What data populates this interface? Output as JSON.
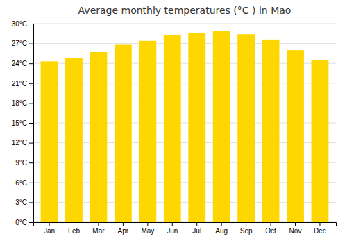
{
  "chart_data": {
    "type": "bar",
    "title": "Average monthly temperatures (°C ) in Mao",
    "categories": [
      "Jan",
      "Feb",
      "Mar",
      "Apr",
      "May",
      "Jun",
      "Jul",
      "Aug",
      "Sep",
      "Oct",
      "Nov",
      "Dec"
    ],
    "values": [
      24.3,
      24.8,
      25.7,
      26.8,
      27.4,
      28.3,
      28.6,
      28.9,
      28.4,
      27.6,
      26.0,
      24.5
    ],
    "color": "#FFD700",
    "ylim": [
      0,
      30
    ],
    "yticks": [
      {
        "value": 0,
        "label": "0°C"
      },
      {
        "value": 3,
        "label": "3°C"
      },
      {
        "value": 6,
        "label": "6°C"
      },
      {
        "value": 9,
        "label": "9°C"
      },
      {
        "value": 12,
        "label": "12°C"
      },
      {
        "value": 15,
        "label": "15°C"
      },
      {
        "value": 18,
        "label": "18°C"
      },
      {
        "value": 21,
        "label": "21°C"
      },
      {
        "value": 24,
        "label": "24°C"
      },
      {
        "value": 27,
        "label": "27°C"
      },
      {
        "value": 30,
        "label": "30°C"
      }
    ],
    "grid": true
  }
}
